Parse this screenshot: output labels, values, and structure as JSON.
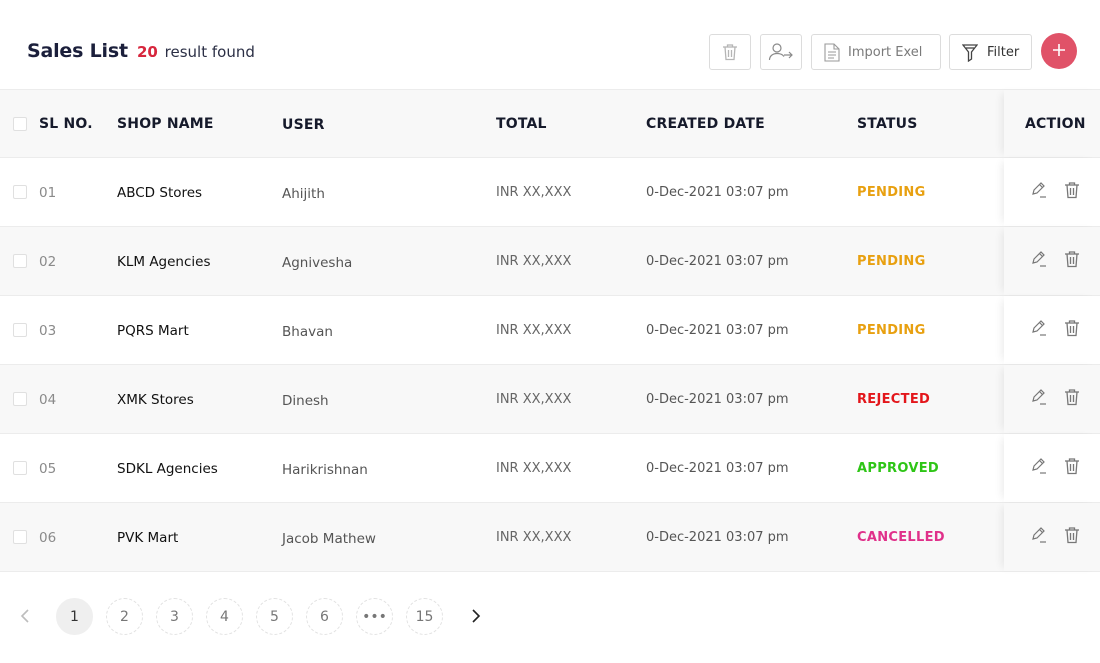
{
  "header": {
    "title": "Sales List",
    "result_count": "20",
    "result_text": "result found"
  },
  "toolbar": {
    "import_label": "Import Exel",
    "filter_label": "Filter"
  },
  "table": {
    "columns": [
      "SL NO.",
      "SHOP NAME",
      "USER",
      "TOTAL",
      "CREATED DATE",
      "STATUS",
      "ACTION"
    ],
    "rows": [
      {
        "sl": "01",
        "shop": "ABCD Stores",
        "user": "Ahijith",
        "total": "INR XX,XXX",
        "date": "0-Dec-2021 03:07 pm",
        "status": "PENDING"
      },
      {
        "sl": "02",
        "shop": "KLM Agencies",
        "user": "Agnivesha",
        "total": "INR XX,XXX",
        "date": "0-Dec-2021 03:07 pm",
        "status": "PENDING"
      },
      {
        "sl": "03",
        "shop": "PQRS Mart",
        "user": "Bhavan",
        "total": "INR XX,XXX",
        "date": "0-Dec-2021 03:07 pm",
        "status": "PENDING"
      },
      {
        "sl": "04",
        "shop": "XMK Stores",
        "user": "Dinesh",
        "total": "INR XX,XXX",
        "date": "0-Dec-2021 03:07 pm",
        "status": "REJECTED"
      },
      {
        "sl": "05",
        "shop": "SDKL Agencies",
        "user": "Harikrishnan",
        "total": "INR XX,XXX",
        "date": "0-Dec-2021 03:07 pm",
        "status": "APPROVED"
      },
      {
        "sl": "06",
        "shop": "PVK Mart",
        "user": "Jacob Mathew",
        "total": "INR XX,XXX",
        "date": "0-Dec-2021 03:07 pm",
        "status": "CANCELLED"
      }
    ]
  },
  "status_colors": {
    "PENDING": "#e8a010",
    "REJECTED": "#e3161b",
    "APPROVED": "#2ec516",
    "CANCELLED": "#e0308a"
  },
  "colors": {
    "accent": "#e05268",
    "count": "#d7263d"
  },
  "icons": {
    "toolbar": [
      "trash-icon",
      "user-switch-icon",
      "document-icon",
      "filter-icon",
      "plus-icon"
    ],
    "row_actions": [
      "edit-icon",
      "trash-icon"
    ],
    "pagination": [
      "chevron-left-icon",
      "chevron-right-icon"
    ]
  },
  "pagination": {
    "pages": [
      "1",
      "2",
      "3",
      "4",
      "5",
      "6",
      "•••",
      "15"
    ],
    "active": "1"
  }
}
